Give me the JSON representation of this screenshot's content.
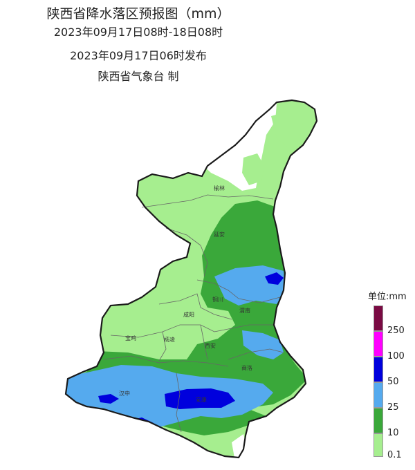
{
  "title": {
    "main": "陕西省降水落区预报图（mm）",
    "period": "2023年09月17日08时-18日08时",
    "issued": "2023年09月17日06时发布",
    "issuer": "陕西省气象台  制"
  },
  "cities": [
    "榆林",
    "延安",
    "铜川",
    "渭南",
    "咸阳",
    "宝鸡",
    "杨凌",
    "西安",
    "商洛",
    "汉中",
    "安康"
  ],
  "legend": {
    "unit": "单位:mm",
    "levels": [
      {
        "label": "250",
        "color": "#7a0a43"
      },
      {
        "label": "100",
        "color": "#ff00ff"
      },
      {
        "label": "50",
        "color": "#0000dd"
      },
      {
        "label": "25",
        "color": "#55aaee"
      },
      {
        "label": "10",
        "color": "#3aa83a"
      },
      {
        "label": "0.1",
        "color": "#a6ee8f"
      }
    ]
  },
  "colors": {
    "no_rain": "#ffffff",
    "light": "#a6ee8f",
    "moderate": "#3aa83a",
    "heavy": "#55aaee",
    "rainstorm": "#0000dd",
    "border": "#1a1a1a",
    "city_border": "#666666"
  }
}
